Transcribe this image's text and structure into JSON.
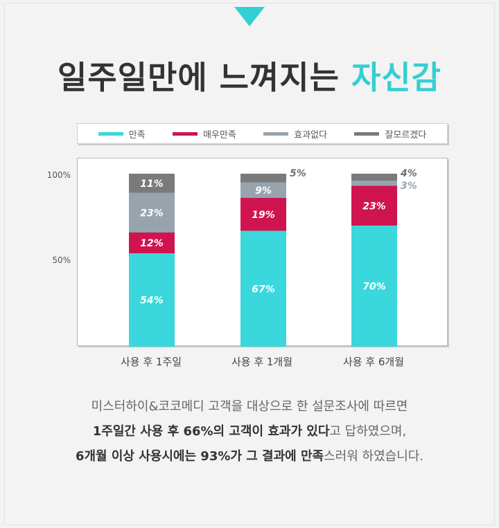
{
  "headline": {
    "part1": "일주일만에 느껴지는 ",
    "part2": "자신감"
  },
  "chart_data": {
    "type": "bar",
    "stacked": true,
    "categories": [
      "사용 후 1주일",
      "사용 후 1개월",
      "사용 후 6개월"
    ],
    "series": [
      {
        "name": "만족",
        "color": "#3ad8dc",
        "values": [
          54,
          67,
          70
        ]
      },
      {
        "name": "매우만족",
        "color": "#d0144f",
        "values": [
          12,
          19,
          23
        ]
      },
      {
        "name": "효과없다",
        "color": "#97a4ae",
        "values": [
          23,
          9,
          3
        ]
      },
      {
        "name": "잘모르겠다",
        "color": "#7a7a7a",
        "values": [
          11,
          5,
          4
        ]
      }
    ],
    "yticks": [
      "100%",
      "50%"
    ],
    "ylim": [
      0,
      100
    ],
    "grid": false,
    "legend": "top"
  },
  "description": {
    "line1": "미스터하이&코코메디 고객을 대상으로 한 설문조사에 따르면",
    "line2_bold": "1주일간 사용 후 66%의 고객이 효과가 있다",
    "line2_rest": "고 답하였으며,",
    "line3_bold": "6개월 이상 사용시에는 93%가 그 결과에 만족",
    "line3_rest": "스러워 하였습니다."
  }
}
